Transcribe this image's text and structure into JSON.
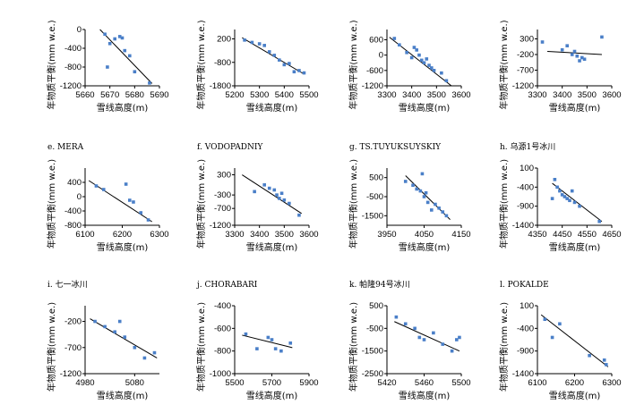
{
  "xlabel": "雪线高度(m)",
  "ylabel": "年物质平衡(mm w.e.)",
  "colors": {
    "point": "#4a7fc8",
    "axis": "#000000",
    "trend": "#000000"
  },
  "chart_data": [
    {
      "type": "scatter",
      "title": "",
      "xlim": [
        5660,
        5690
      ],
      "xticks": [
        "5660",
        "5670",
        "5680",
        "5690"
      ],
      "ylim": [
        -1200,
        0
      ],
      "yticks": [
        "0",
        "-400",
        "-800",
        "-1200"
      ],
      "points": [
        [
          5668,
          -100
        ],
        [
          5670,
          -300
        ],
        [
          5672,
          -200
        ],
        [
          5674,
          -150
        ],
        [
          5675,
          -180
        ],
        [
          5676,
          -450
        ],
        [
          5678,
          -560
        ],
        [
          5669,
          -800
        ],
        [
          5680,
          -900
        ],
        [
          5686,
          -1140
        ]
      ],
      "trend": [
        [
          5666,
          0
        ],
        [
          5687,
          -1150
        ]
      ]
    },
    {
      "type": "scatter",
      "title": "",
      "xlim": [
        5200,
        5500
      ],
      "xticks": [
        "5200",
        "5300",
        "5400",
        "5500"
      ],
      "ylim": [
        -1800,
        600
      ],
      "yticks": [
        "200",
        "-800",
        "-1800"
      ],
      "points": [
        [
          5240,
          150
        ],
        [
          5270,
          50
        ],
        [
          5300,
          -10
        ],
        [
          5320,
          -80
        ],
        [
          5340,
          -350
        ],
        [
          5360,
          -500
        ],
        [
          5380,
          -700
        ],
        [
          5400,
          -900
        ],
        [
          5420,
          -850
        ],
        [
          5440,
          -1200
        ],
        [
          5460,
          -1150
        ],
        [
          5480,
          -1250
        ]
      ],
      "trend": [
        [
          5230,
          250
        ],
        [
          5480,
          -1300
        ]
      ]
    },
    {
      "type": "scatter",
      "title": "",
      "xlim": [
        3300,
        3600
      ],
      "xticks": [
        "3300",
        "3400",
        "3500",
        "3600"
      ],
      "ylim": [
        -1200,
        1000
      ],
      "yticks": [
        "600",
        "0",
        "-600",
        "-1200"
      ],
      "points": [
        [
          3330,
          650
        ],
        [
          3350,
          400
        ],
        [
          3380,
          100
        ],
        [
          3400,
          -100
        ],
        [
          3410,
          300
        ],
        [
          3420,
          200
        ],
        [
          3430,
          0
        ],
        [
          3440,
          -200
        ],
        [
          3450,
          -300
        ],
        [
          3460,
          -150
        ],
        [
          3470,
          -400
        ],
        [
          3480,
          -500
        ],
        [
          3490,
          -600
        ],
        [
          3520,
          -700
        ],
        [
          3540,
          -1000
        ]
      ],
      "trend": [
        [
          3310,
          700
        ],
        [
          3560,
          -1200
        ]
      ]
    },
    {
      "type": "scatter",
      "title": "",
      "xlim": [
        3300,
        3600
      ],
      "xticks": [
        "3300",
        "3400",
        "3500",
        "3600"
      ],
      "ylim": [
        -1200,
        600
      ],
      "yticks": [
        "300",
        "-200",
        "-700",
        "-1200"
      ],
      "points": [
        [
          3320,
          200
        ],
        [
          3400,
          -50
        ],
        [
          3420,
          80
        ],
        [
          3440,
          -200
        ],
        [
          3450,
          -100
        ],
        [
          3460,
          -250
        ],
        [
          3470,
          -400
        ],
        [
          3480,
          -300
        ],
        [
          3490,
          -350
        ],
        [
          3560,
          360
        ]
      ],
      "trend": [
        [
          3340,
          -100
        ],
        [
          3560,
          -200
        ]
      ]
    },
    {
      "type": "scatter",
      "title": "e. MERA",
      "xlim": [
        6100,
        6300
      ],
      "xticks": [
        "6100",
        "6200",
        "6300"
      ],
      "ylim": [
        -800,
        800
      ],
      "yticks": [
        "400",
        "0",
        "-400",
        "-800"
      ],
      "points": [
        [
          6130,
          300
        ],
        [
          6150,
          200
        ],
        [
          6210,
          350
        ],
        [
          6220,
          -100
        ],
        [
          6230,
          -150
        ],
        [
          6250,
          -450
        ],
        [
          6270,
          -650
        ]
      ],
      "trend": [
        [
          6110,
          450
        ],
        [
          6280,
          -700
        ]
      ]
    },
    {
      "type": "scatter",
      "title": "f. VODOPADNIY",
      "xlim": [
        3300,
        3600
      ],
      "xticks": [
        "3300",
        "3400",
        "3500",
        "3600"
      ],
      "ylim": [
        -1200,
        500
      ],
      "yticks": [
        "300",
        "-300",
        "-700",
        "-1200"
      ],
      "points": [
        [
          3380,
          -200
        ],
        [
          3420,
          0
        ],
        [
          3440,
          -100
        ],
        [
          3460,
          -150
        ],
        [
          3470,
          -300
        ],
        [
          3480,
          -400
        ],
        [
          3490,
          -250
        ],
        [
          3500,
          -450
        ],
        [
          3520,
          -550
        ],
        [
          3560,
          -900
        ]
      ],
      "trend": [
        [
          3330,
          300
        ],
        [
          3570,
          -850
        ]
      ]
    },
    {
      "type": "scatter",
      "title": "g. TS.TUYUKSUYSKIY",
      "xlim": [
        3950,
        4150
      ],
      "xticks": [
        "3950",
        "4050",
        "4150"
      ],
      "ylim": [
        -2000,
        1000
      ],
      "yticks": [
        "500",
        "-500",
        "-1500"
      ],
      "points": [
        [
          4000,
          300
        ],
        [
          4020,
          100
        ],
        [
          4030,
          -100
        ],
        [
          4040,
          -200
        ],
        [
          4045,
          700
        ],
        [
          4050,
          -500
        ],
        [
          4055,
          -300
        ],
        [
          4060,
          -800
        ],
        [
          4070,
          -1200
        ],
        [
          4080,
          -900
        ],
        [
          4090,
          -1100
        ],
        [
          4100,
          -1300
        ],
        [
          4110,
          -1500
        ]
      ],
      "trend": [
        [
          4000,
          600
        ],
        [
          4120,
          -1700
        ]
      ]
    },
    {
      "type": "scatter",
      "title": "h. 乌源1号冰川",
      "xlim": [
        4350,
        4650
      ],
      "xticks": [
        "4350",
        "4450",
        "4550",
        "4650"
      ],
      "ylim": [
        -1400,
        100
      ],
      "yticks": [
        "100",
        "-400",
        "-900",
        "-1400"
      ],
      "points": [
        [
          4410,
          -700
        ],
        [
          4420,
          -200
        ],
        [
          4430,
          -400
        ],
        [
          4440,
          -500
        ],
        [
          4450,
          -600
        ],
        [
          4460,
          -650
        ],
        [
          4470,
          -700
        ],
        [
          4480,
          -750
        ],
        [
          4490,
          -500
        ],
        [
          4500,
          -800
        ],
        [
          4520,
          -900
        ],
        [
          4600,
          -1300
        ]
      ],
      "trend": [
        [
          4410,
          -300
        ],
        [
          4610,
          -1300
        ]
      ]
    },
    {
      "type": "scatter",
      "title": "i. 七一冰川",
      "xlim": [
        4980,
        5130
      ],
      "xticks": [
        "4980",
        "5080"
      ],
      "ylim": [
        -1200,
        100
      ],
      "yticks": [
        "-200",
        "-700",
        "-1200"
      ],
      "points": [
        [
          5000,
          -200
        ],
        [
          5020,
          -300
        ],
        [
          5040,
          -400
        ],
        [
          5050,
          -200
        ],
        [
          5060,
          -500
        ],
        [
          5080,
          -700
        ],
        [
          5100,
          -900
        ],
        [
          5120,
          -800
        ]
      ],
      "trend": [
        [
          4990,
          -150
        ],
        [
          5125,
          -900
        ]
      ]
    },
    {
      "type": "scatter",
      "title": "j. CHORABARI",
      "xlim": [
        5500,
        5900
      ],
      "xticks": [
        "5500",
        "5700",
        "5900"
      ],
      "ylim": [
        -1000,
        -400
      ],
      "yticks": [
        "-400",
        "-600",
        "-800",
        "-1000"
      ],
      "points": [
        [
          5560,
          -650
        ],
        [
          5620,
          -780
        ],
        [
          5680,
          -680
        ],
        [
          5700,
          -700
        ],
        [
          5720,
          -780
        ],
        [
          5750,
          -800
        ],
        [
          5800,
          -730
        ]
      ],
      "trend": [
        [
          5540,
          -660
        ],
        [
          5810,
          -770
        ]
      ]
    },
    {
      "type": "scatter",
      "title": "k. 帕隆94号冰川",
      "xlim": [
        5420,
        5500
      ],
      "xticks": [
        "5420",
        "5460",
        "5500"
      ],
      "ylim": [
        -2500,
        500
      ],
      "yticks": [
        "500",
        "-500",
        "-1500",
        "-2500"
      ],
      "points": [
        [
          5430,
          0
        ],
        [
          5440,
          -300
        ],
        [
          5450,
          -500
        ],
        [
          5455,
          -900
        ],
        [
          5460,
          -1000
        ],
        [
          5470,
          -700
        ],
        [
          5480,
          -1200
        ],
        [
          5490,
          -1500
        ],
        [
          5495,
          -1000
        ],
        [
          5498,
          -900
        ]
      ],
      "trend": [
        [
          5428,
          -200
        ],
        [
          5498,
          -1500
        ]
      ]
    },
    {
      "type": "scatter",
      "title": "l. POKALDE",
      "xlim": [
        6100,
        6300
      ],
      "xticks": [
        "6100",
        "6200",
        "6300"
      ],
      "ylim": [
        -1400,
        100
      ],
      "yticks": [
        "100",
        "-400",
        "-900",
        "-1400"
      ],
      "points": [
        [
          6120,
          -200
        ],
        [
          6140,
          -600
        ],
        [
          6160,
          -300
        ],
        [
          6240,
          -1000
        ],
        [
          6280,
          -1100
        ],
        [
          6285,
          -1200
        ]
      ],
      "trend": [
        [
          6110,
          -100
        ],
        [
          6290,
          -1250
        ]
      ]
    }
  ]
}
